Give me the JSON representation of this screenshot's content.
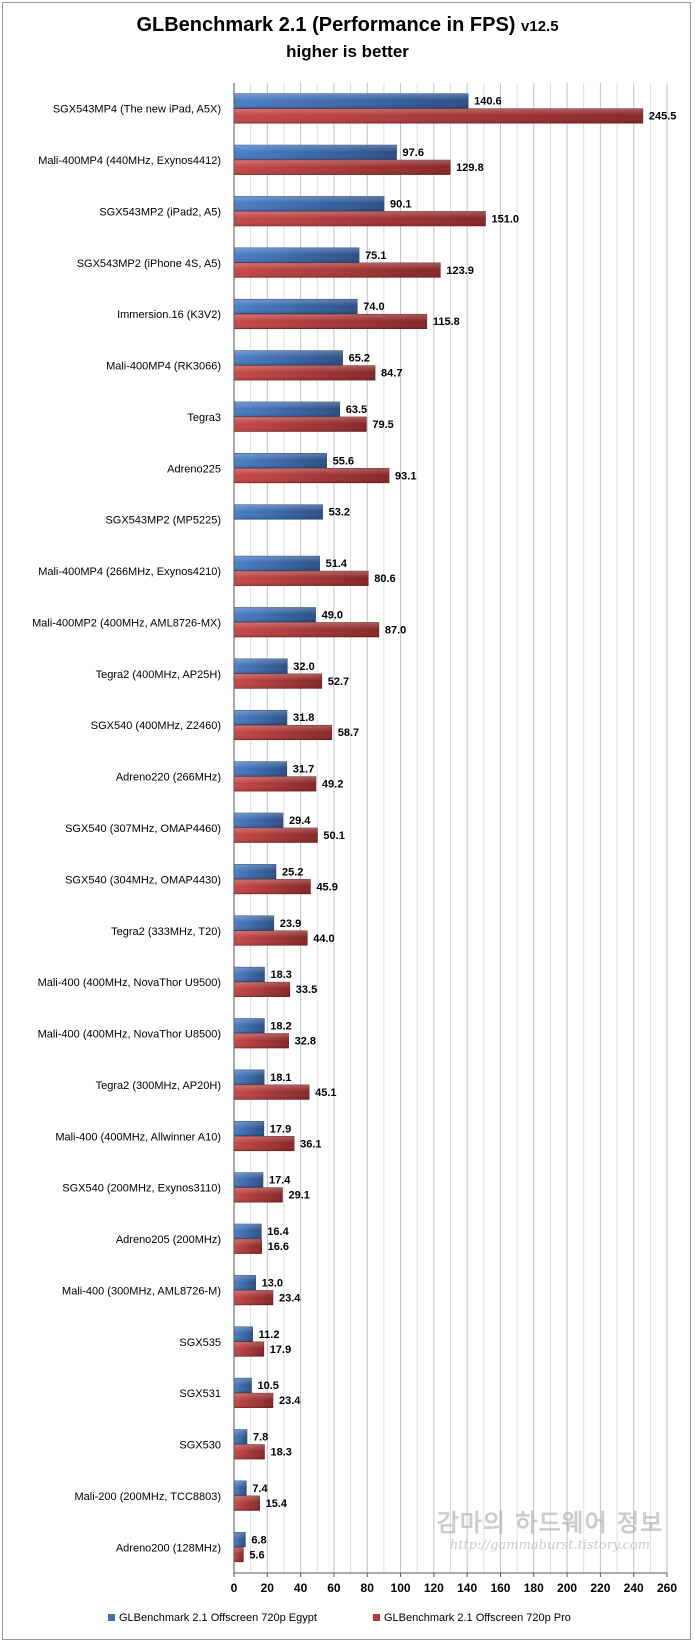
{
  "chart_data": {
    "type": "bar",
    "orientation": "horizontal",
    "title": "GLBenchmark 2.1 (Performance in FPS)",
    "title_suffix": "v12.5",
    "subtitle": "higher is better",
    "xlim": [
      0,
      260
    ],
    "xticks": [
      0,
      20,
      40,
      60,
      80,
      100,
      120,
      140,
      160,
      180,
      200,
      220,
      240,
      260
    ],
    "grid": true,
    "legend_position": "bottom",
    "categories": [
      "SGX543MP4 (The new iPad, A5X)",
      "Mali-400MP4 (440MHz, Exynos4412)",
      "SGX543MP2 (iPad2, A5)",
      "SGX543MP2 (iPhone 4S, A5)",
      "Immersion.16 (K3V2)",
      "Mali-400MP4 (RK3066)",
      "Tegra3",
      "Adreno225",
      "SGX543MP2 (MP5225)",
      "Mali-400MP4 (266MHz, Exynos4210)",
      "Mali-400MP2 (400MHz, AML8726-MX)",
      "Tegra2 (400MHz, AP25H)",
      "SGX540 (400MHz, Z2460)",
      "Adreno220 (266MHz)",
      "SGX540 (307MHz, OMAP4460)",
      "SGX540 (304MHz, OMAP4430)",
      "Tegra2 (333MHz, T20)",
      "Mali-400 (400MHz, NovaThor U9500)",
      "Mali-400 (400MHz, NovaThor U8500)",
      "Tegra2 (300MHz, AP20H)",
      "Mali-400 (400MHz, Allwinner A10)",
      "SGX540 (200MHz, Exynos3110)",
      "Adreno205 (200MHz)",
      "Mali-400 (300MHz, AML8726-M)",
      "SGX535",
      "SGX531",
      "SGX530",
      "Mali-200 (200MHz, TCC8803)",
      "Adreno200 (128MHz)"
    ],
    "series": [
      {
        "name": "GLBenchmark 2.1 Offscreen 720p Egypt",
        "color": "#3f6fb5",
        "values": [
          140.6,
          97.6,
          90.1,
          75.1,
          74.0,
          65.2,
          63.5,
          55.6,
          53.2,
          51.4,
          49.0,
          32.0,
          31.8,
          31.7,
          29.4,
          25.2,
          23.9,
          18.3,
          18.2,
          18.1,
          17.9,
          17.4,
          16.4,
          13.0,
          11.2,
          10.5,
          7.8,
          7.4,
          6.8
        ]
      },
      {
        "name": "GLBenchmark 2.1 Offscreen 720p Pro",
        "color": "#b23a3a",
        "values": [
          245.5,
          129.8,
          151.0,
          123.9,
          115.8,
          84.7,
          79.5,
          93.1,
          null,
          80.6,
          87.0,
          52.7,
          58.7,
          49.2,
          50.1,
          45.9,
          44.0,
          33.5,
          32.8,
          45.1,
          36.1,
          29.1,
          16.6,
          23.4,
          17.9,
          23.4,
          18.3,
          15.4,
          5.6
        ]
      }
    ]
  },
  "watermark": {
    "line1": "감마의 하드웨어 정보",
    "line2": "http://gammaburst.tistory.com"
  }
}
